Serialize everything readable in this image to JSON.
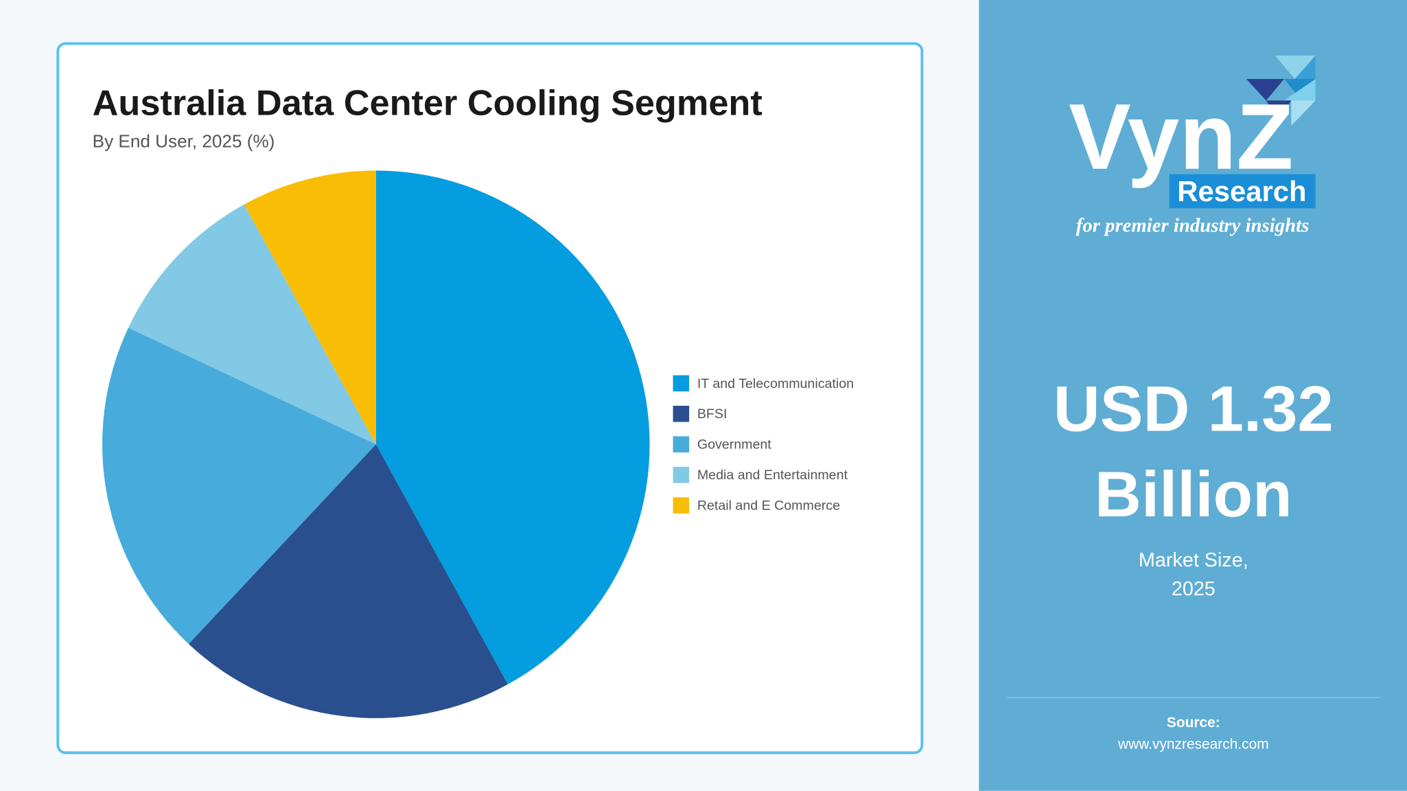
{
  "chart_data": {
    "type": "pie",
    "title": "Australia Data Center Cooling Segment",
    "subtitle": "By End User, 2025 (%)",
    "categories": [
      "IT and Telecommunication",
      "BFSI",
      "Government",
      "Media and Entertainment",
      "Retail and E Commerce"
    ],
    "values": [
      42,
      20,
      20,
      10,
      8
    ],
    "colors": [
      "#049ddf",
      "#2a4f8f",
      "#47abdb",
      "#81c9e4",
      "#f9bd06"
    ]
  },
  "panel": {
    "logo": {
      "name": "VynZ",
      "sub": "Research",
      "tagline": "for premier industry insights"
    },
    "headline": [
      "USD 1.32",
      "Billion"
    ],
    "caption": [
      "Market Size,",
      "2025"
    ],
    "source_label": "Source:",
    "source_url": "www.vynzresearch.com"
  }
}
